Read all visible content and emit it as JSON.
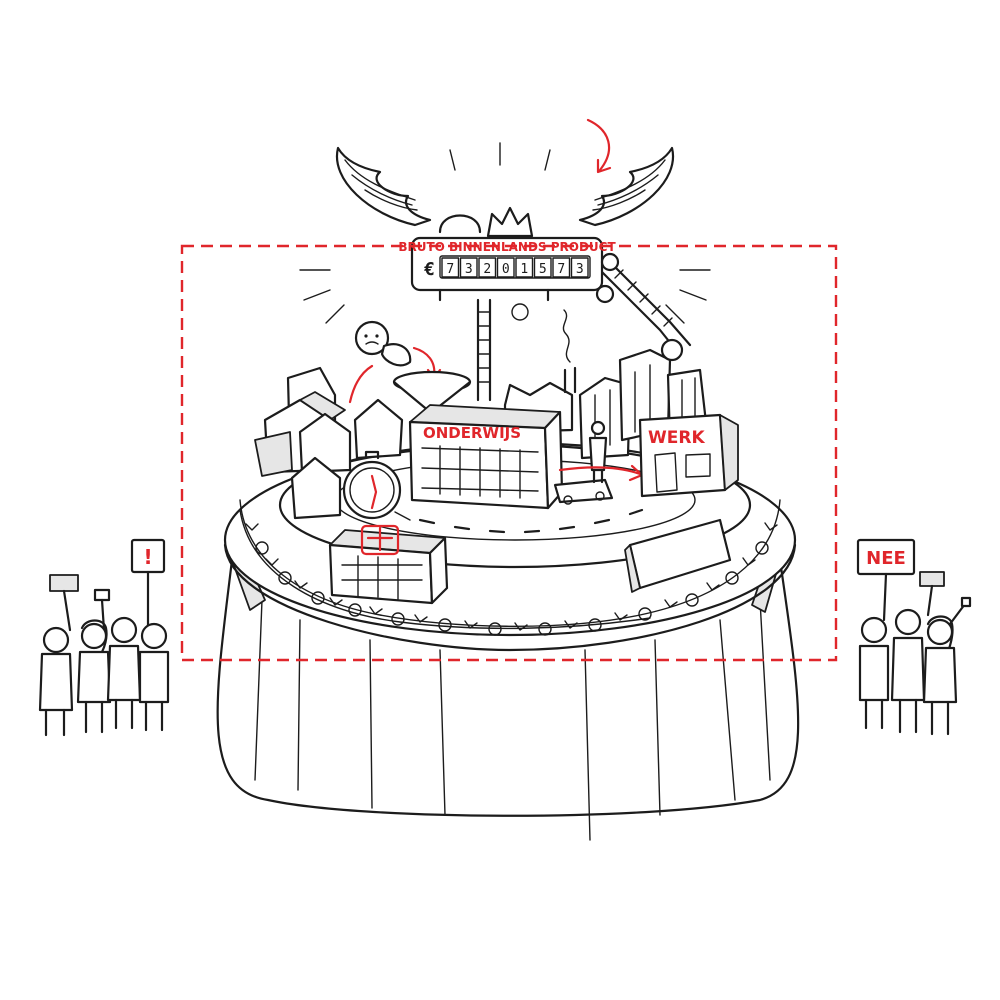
{
  "gdp_sign": {
    "title": "BRUTO BINNENLANDS PRODUCT",
    "currency": "€",
    "digits": [
      "7",
      "3",
      "2",
      "0",
      "1",
      "5",
      "7",
      "3"
    ]
  },
  "buildings": {
    "school_label": "ONDERWIJS",
    "work_label": "WERK"
  },
  "protest": {
    "left_sign": "!",
    "right_sign": "NEE"
  },
  "colors": {
    "accent": "#e0262b",
    "ink": "#1c1c1c",
    "background": "#ffffff"
  },
  "icons": [
    "winged-gdp-sign-icon",
    "crown-icon",
    "gear-icon",
    "funnel-icon",
    "stopwatch-icon",
    "hospital-cross-icon",
    "barbed-wire-icon",
    "protest-sign-icon"
  ]
}
